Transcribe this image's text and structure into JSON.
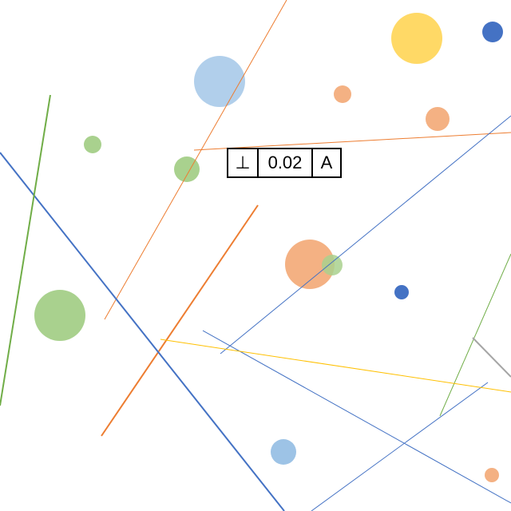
{
  "colors": {
    "blue": "#4472c4",
    "orange": "#ed7d31",
    "green": "#70ad47",
    "yellow": "#ffc000",
    "gray": "#a5a5a5",
    "light_blue": "#9dc3e6",
    "light_orange": "#f4b183",
    "light_green": "#a9d18e",
    "light_yellow": "#ffd966"
  },
  "feature_control_frame": {
    "symbol": "⊥",
    "tolerance": "0.02",
    "datum": "A"
  }
}
